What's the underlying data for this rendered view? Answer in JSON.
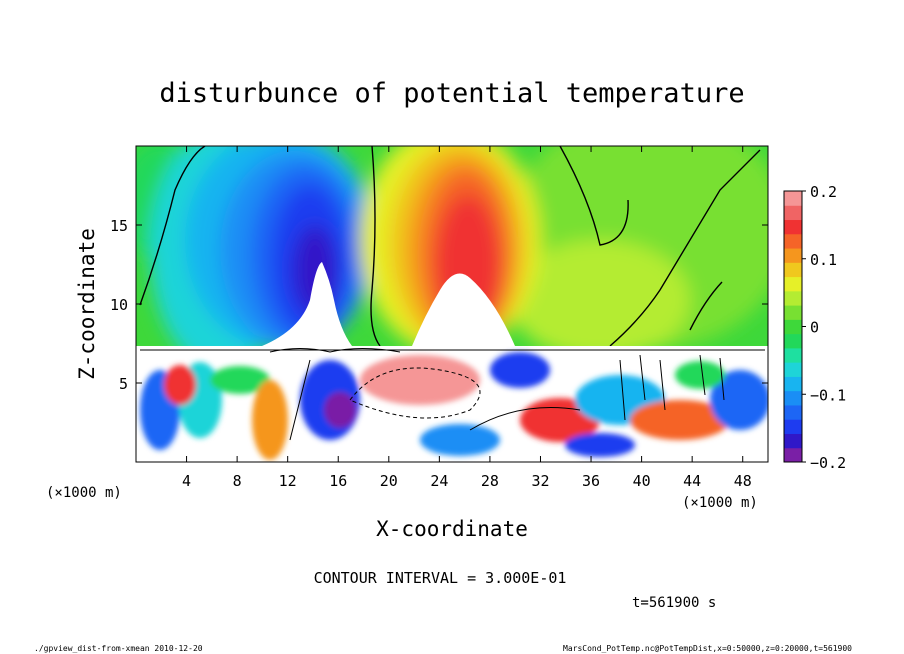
{
  "chart_data": {
    "type": "heatmap",
    "title": "disturbunce of potential temperature",
    "xlabel": "X-coordinate",
    "ylabel": "Z-coordinate",
    "x_unit_left": "(×1000 m)",
    "x_unit_right": "(×1000 m)",
    "x_ticks": [
      "4",
      "8",
      "12",
      "16",
      "20",
      "24",
      "28",
      "32",
      "36",
      "40",
      "44",
      "48"
    ],
    "y_ticks": [
      "5",
      "10",
      "15"
    ],
    "xlim": [
      0,
      50
    ],
    "ylim": [
      0,
      20
    ],
    "grid": false,
    "contour_interval_text": "CONTOUR INTERVAL = 3.000E-01",
    "time_text": "t=561900 s",
    "colorbar": {
      "range": [
        -0.2,
        0.2
      ],
      "tick_labels": [
        "0.2",
        "0.1",
        "0",
        "−0.1",
        "−0.2"
      ],
      "tick_values": [
        0.2,
        0.1,
        0,
        -0.1,
        -0.2
      ],
      "colors": [
        "#7a1fa6",
        "#3018c8",
        "#1e3cf0",
        "#1d66f5",
        "#1a8ef5",
        "#18b4f0",
        "#1ed4d8",
        "#1ee0a0",
        "#22d85a",
        "#3ed83a",
        "#78e032",
        "#b4ec32",
        "#e6f028",
        "#f0c81e",
        "#f5961e",
        "#f56428",
        "#f03232",
        "#f06464",
        "#f59696"
      ],
      "label_min": "−0.2",
      "label_max": "0.2"
    },
    "features": [
      {
        "name": "negative anomaly plume",
        "x_center": 13,
        "z_range": [
          7.5,
          19
        ],
        "value": -0.2
      },
      {
        "name": "positive anomaly plume",
        "x_center": 26,
        "z_range": [
          7.5,
          19
        ],
        "value": 0.2
      }
    ]
  },
  "footer": {
    "left": "./gpview_dist-from-xmean  2010-12-20",
    "right": "MarsCond_PotTemp.nc@PotTempDist,x=0:50000,z=0:20000,t=561900"
  }
}
